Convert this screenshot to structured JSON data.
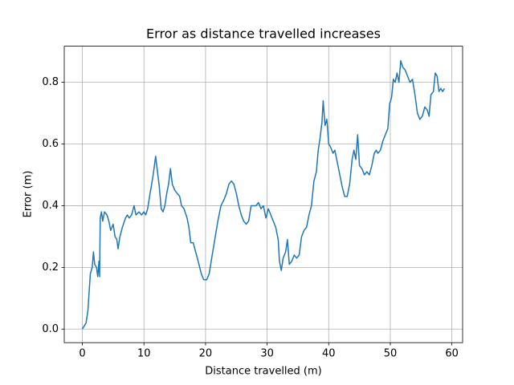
{
  "chart_data": {
    "type": "line",
    "title": "Error as distance travelled increases",
    "x_label": "Distance travelled (m)",
    "y_label": "Error (m)",
    "color": "#1f77b4",
    "grid": true,
    "xlim": [
      -2.94,
      61.74
    ],
    "ylim": [
      -0.044,
      0.917
    ],
    "xticks": [
      0,
      10,
      20,
      30,
      40,
      50,
      60
    ],
    "yticks": [
      {
        "value": 0,
        "label": "0.0"
      },
      0.2,
      0.4,
      0.6,
      0.8
    ],
    "x": [
      0,
      0.3,
      0.6,
      0.9,
      1.1,
      1.3,
      1.6,
      1.8,
      2.0,
      2.3,
      2.5,
      2.7,
      2.8,
      2.9,
      3.1,
      3.3,
      3.6,
      4.0,
      4.3,
      4.6,
      5.0,
      5.3,
      5.6,
      5.8,
      6.1,
      6.5,
      7.0,
      7.3,
      7.6,
      8.0,
      8.4,
      8.7,
      9.2,
      9.6,
      10.0,
      10.3,
      10.6,
      11.0,
      11.5,
      11.9,
      12.2,
      12.5,
      12.8,
      13.1,
      13.4,
      13.7,
      14.0,
      14.3,
      14.6,
      15.0,
      15.4,
      15.8,
      16.1,
      16.5,
      17.0,
      17.3,
      17.6,
      18.0,
      18.4,
      18.8,
      19.3,
      19.7,
      20.2,
      20.6,
      21.0,
      21.5,
      22.0,
      22.5,
      23.0,
      23.4,
      23.8,
      24.2,
      24.6,
      25.0,
      25.4,
      25.8,
      26.2,
      26.6,
      27.0,
      27.4,
      27.8,
      28.2,
      28.6,
      29.0,
      29.4,
      29.8,
      30.2,
      30.6,
      31.0,
      31.4,
      31.8,
      32.0,
      32.3,
      32.6,
      33.0,
      33.3,
      33.6,
      34.0,
      34.4,
      34.8,
      35.2,
      35.6,
      36.0,
      36.4,
      36.8,
      37.2,
      37.6,
      38.0,
      38.3,
      38.6,
      38.9,
      39.1,
      39.4,
      39.7,
      40.0,
      40.3,
      40.7,
      41.0,
      41.4,
      41.8,
      42.2,
      42.6,
      43.0,
      43.4,
      43.8,
      44.1,
      44.4,
      44.7,
      45.0,
      45.4,
      45.8,
      46.2,
      46.6,
      47.0,
      47.4,
      47.7,
      48.0,
      48.4,
      48.8,
      49.2,
      49.6,
      49.9,
      50.2,
      50.5,
      50.8,
      51.1,
      51.4,
      51.7,
      52.0,
      52.4,
      52.8,
      53.2,
      53.6,
      54.0,
      54.4,
      54.8,
      55.2,
      55.6,
      56.0,
      56.3,
      56.6,
      57.0,
      57.3,
      57.6,
      57.9,
      58.2,
      58.5,
      58.8
    ],
    "values": [
      0.0,
      0.01,
      0.02,
      0.06,
      0.12,
      0.18,
      0.2,
      0.25,
      0.21,
      0.2,
      0.17,
      0.22,
      0.17,
      0.36,
      0.38,
      0.35,
      0.38,
      0.37,
      0.35,
      0.32,
      0.34,
      0.3,
      0.29,
      0.26,
      0.3,
      0.33,
      0.36,
      0.37,
      0.36,
      0.37,
      0.4,
      0.37,
      0.38,
      0.37,
      0.38,
      0.37,
      0.39,
      0.44,
      0.5,
      0.56,
      0.51,
      0.46,
      0.39,
      0.38,
      0.4,
      0.44,
      0.47,
      0.52,
      0.47,
      0.45,
      0.44,
      0.43,
      0.4,
      0.39,
      0.36,
      0.33,
      0.28,
      0.28,
      0.25,
      0.22,
      0.18,
      0.16,
      0.16,
      0.18,
      0.23,
      0.29,
      0.35,
      0.4,
      0.42,
      0.44,
      0.47,
      0.48,
      0.47,
      0.44,
      0.4,
      0.37,
      0.35,
      0.34,
      0.35,
      0.4,
      0.4,
      0.4,
      0.41,
      0.39,
      0.4,
      0.36,
      0.39,
      0.37,
      0.35,
      0.33,
      0.29,
      0.22,
      0.19,
      0.23,
      0.25,
      0.29,
      0.21,
      0.22,
      0.24,
      0.23,
      0.24,
      0.3,
      0.32,
      0.33,
      0.37,
      0.4,
      0.48,
      0.51,
      0.58,
      0.62,
      0.67,
      0.74,
      0.66,
      0.68,
      0.6,
      0.59,
      0.57,
      0.58,
      0.54,
      0.5,
      0.46,
      0.43,
      0.43,
      0.47,
      0.55,
      0.58,
      0.55,
      0.63,
      0.53,
      0.52,
      0.5,
      0.51,
      0.5,
      0.53,
      0.57,
      0.58,
      0.57,
      0.58,
      0.61,
      0.63,
      0.65,
      0.73,
      0.75,
      0.81,
      0.8,
      0.83,
      0.8,
      0.87,
      0.85,
      0.84,
      0.82,
      0.8,
      0.81,
      0.76,
      0.7,
      0.68,
      0.69,
      0.72,
      0.71,
      0.69,
      0.76,
      0.77,
      0.83,
      0.82,
      0.77,
      0.78,
      0.77,
      0.78
    ]
  }
}
